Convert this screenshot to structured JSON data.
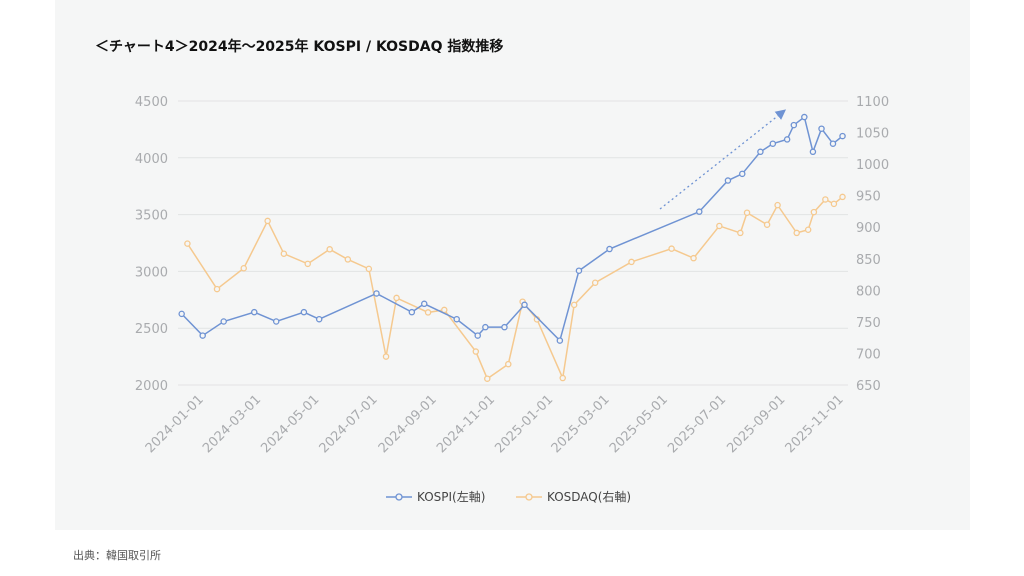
{
  "title": "＜チャート4＞2024年〜2025年 KOSPI / KOSDAQ 指数推移",
  "source": "出典：韓国取引所",
  "chart_data": {
    "type": "line",
    "title": "＜チャート4＞2024年〜2025年 KOSPI / KOSDAQ 指数推移",
    "xlabel": "",
    "ylabel": "",
    "y2label": "",
    "x_ticks": [
      "2024-01-01",
      "2024-03-01",
      "2024-05-01",
      "2024-07-01",
      "2024-09-01",
      "2024-11-01",
      "2025-01-01",
      "2025-03-01",
      "2025-05-01",
      "2025-07-01",
      "2025-09-01",
      "2025-11-01"
    ],
    "ylim_left": [
      2000,
      4500
    ],
    "y_ticks_left": [
      "2000",
      "2500",
      "3000",
      "3500",
      "4000",
      "4500"
    ],
    "ylim_right": [
      650,
      1100
    ],
    "y_ticks_right": [
      "650",
      "700",
      "750",
      "800",
      "850",
      "900",
      "950",
      "1000",
      "1050",
      "1100"
    ],
    "grid": true,
    "legend": "bottom",
    "series": [
      {
        "name": "KOSPI(左軸)",
        "axis": "left",
        "color": "#6f93d3",
        "points": [
          [
            "2023-12-17",
            2626
          ],
          [
            "2024-01-08",
            2435
          ],
          [
            "2024-01-30",
            2559
          ],
          [
            "2024-03-02",
            2641
          ],
          [
            "2024-03-25",
            2559
          ],
          [
            "2024-04-23",
            2641
          ],
          [
            "2024-05-09",
            2579
          ],
          [
            "2024-07-08",
            2806
          ],
          [
            "2024-08-14",
            2641
          ],
          [
            "2024-08-27",
            2715
          ],
          [
            "2024-09-30",
            2579
          ],
          [
            "2024-10-22",
            2435
          ],
          [
            "2024-10-30",
            2509
          ],
          [
            "2024-11-19",
            2509
          ],
          [
            "2024-12-10",
            2706
          ],
          [
            "2025-01-16",
            2391
          ],
          [
            "2025-02-05",
            3006
          ],
          [
            "2025-03-09",
            3197
          ],
          [
            "2025-06-11",
            3526
          ],
          [
            "2025-07-11",
            3800
          ],
          [
            "2025-07-26",
            3859
          ],
          [
            "2025-08-14",
            4053
          ],
          [
            "2025-08-27",
            4124
          ],
          [
            "2025-09-11",
            4162
          ],
          [
            "2025-09-18",
            4288
          ],
          [
            "2025-09-29",
            4359
          ],
          [
            "2025-10-08",
            4053
          ],
          [
            "2025-10-17",
            4256
          ],
          [
            "2025-10-29",
            4124
          ],
          [
            "2025-11-08",
            4191
          ]
        ]
      },
      {
        "name": "KOSDAQ(右軸)",
        "axis": "right",
        "color": "#f5c98f",
        "points": [
          [
            "2023-12-23",
            874
          ],
          [
            "2024-01-23",
            802
          ],
          [
            "2024-02-20",
            835
          ],
          [
            "2024-03-16",
            910
          ],
          [
            "2024-04-02",
            858
          ],
          [
            "2024-04-27",
            842
          ],
          [
            "2024-05-20",
            865
          ],
          [
            "2024-06-08",
            849
          ],
          [
            "2024-06-30",
            834
          ],
          [
            "2024-07-18",
            695
          ],
          [
            "2024-07-29",
            788
          ],
          [
            "2024-08-31",
            765
          ],
          [
            "2024-09-17",
            769
          ],
          [
            "2024-10-20",
            703
          ],
          [
            "2024-11-01",
            660
          ],
          [
            "2024-11-23",
            683
          ],
          [
            "2024-12-08",
            782
          ],
          [
            "2024-12-23",
            754
          ],
          [
            "2025-01-19",
            661
          ],
          [
            "2025-01-31",
            777
          ],
          [
            "2025-02-22",
            812
          ],
          [
            "2025-04-01",
            845
          ],
          [
            "2025-05-13",
            866
          ],
          [
            "2025-06-05",
            851
          ],
          [
            "2025-07-02",
            902
          ],
          [
            "2025-07-24",
            891
          ],
          [
            "2025-07-31",
            923
          ],
          [
            "2025-08-21",
            904
          ],
          [
            "2025-09-01",
            935
          ],
          [
            "2025-09-21",
            891
          ],
          [
            "2025-10-03",
            896
          ],
          [
            "2025-10-09",
            924
          ],
          [
            "2025-10-21",
            944
          ],
          [
            "2025-10-30",
            937
          ],
          [
            "2025-11-08",
            948
          ]
        ]
      }
    ],
    "annotations": [
      {
        "type": "dotted-arrow",
        "direction": "up-right",
        "color": "#6f93d3"
      }
    ]
  }
}
